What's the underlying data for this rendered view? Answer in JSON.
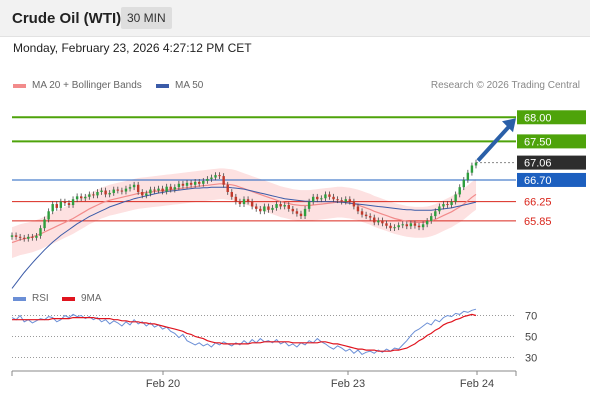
{
  "header": {
    "title": "Crude Oil (WTI)",
    "timeframe": "30 MIN"
  },
  "datetime": "Monday, February 23, 2026 4:27:12 PM CET",
  "legend": {
    "ma20": "MA 20 + Bollinger Bands",
    "ma50": "MA 50",
    "copyright": "Research © 2026 Trading Central"
  },
  "colors": {
    "resistance": "#4ea30a",
    "support": "#1c5fbf",
    "pivot_red": "#d9261c",
    "ma20": "#f28b8b",
    "ma50": "#3b5ba8",
    "bollinger_fill": "#fde1e1",
    "arrow": "#2a5fa8",
    "rsi": "#6b8fd6",
    "rsi_ma": "#e0141e"
  },
  "chart_data": [
    {
      "type": "candlestick",
      "title": "Crude Oil (WTI)",
      "timeframe": "30 MIN",
      "x_ticks": [
        "Feb 20",
        "Feb 23",
        "Feb 24"
      ],
      "ylim": [
        64.5,
        68.4
      ],
      "levels": [
        {
          "value": 68.0,
          "label": "68.00",
          "kind": "resistance"
        },
        {
          "value": 67.5,
          "label": "67.50",
          "kind": "resistance"
        },
        {
          "value": 67.06,
          "label": "67.06",
          "kind": "last_price"
        },
        {
          "value": 66.7,
          "label": "66.70",
          "kind": "pivot"
        },
        {
          "value": 66.25,
          "label": "66.25",
          "kind": "support"
        },
        {
          "value": 65.85,
          "label": "65.85",
          "kind": "support"
        }
      ],
      "close": [
        65.55,
        65.52,
        65.5,
        65.48,
        65.52,
        65.5,
        65.54,
        65.7,
        65.88,
        66.05,
        66.2,
        66.12,
        66.25,
        66.22,
        66.18,
        66.3,
        66.36,
        66.32,
        66.35,
        66.4,
        66.38,
        66.45,
        66.48,
        66.4,
        66.43,
        66.5,
        66.48,
        66.46,
        66.52,
        66.55,
        66.6,
        66.45,
        66.38,
        66.42,
        66.5,
        66.48,
        66.52,
        66.46,
        66.56,
        66.5,
        66.55,
        66.62,
        66.58,
        66.64,
        66.6,
        66.66,
        66.62,
        66.68,
        66.72,
        66.75,
        66.8,
        66.78,
        66.6,
        66.45,
        66.35,
        66.25,
        66.2,
        66.3,
        66.25,
        66.15,
        66.1,
        66.05,
        66.15,
        66.08,
        66.12,
        66.2,
        66.15,
        66.18,
        66.1,
        66.05,
        66.0,
        65.95,
        66.1,
        66.25,
        66.35,
        66.3,
        66.32,
        66.4,
        66.35,
        66.3,
        66.28,
        66.25,
        66.3,
        66.25,
        66.15,
        66.05,
        65.98,
        65.95,
        65.92,
        65.82,
        65.86,
        65.8,
        65.75,
        65.7,
        65.72,
        65.76,
        65.78,
        65.74,
        65.8,
        65.75,
        65.72,
        65.78,
        65.85,
        65.95,
        66.05,
        66.15,
        66.2,
        66.18,
        66.25,
        66.4,
        66.55,
        66.7,
        66.85,
        67.0,
        67.06
      ],
      "ma20": [
        65.4,
        65.43,
        65.46,
        65.48,
        65.5,
        65.52,
        65.55,
        65.58,
        65.62,
        65.66,
        65.7,
        65.74,
        65.78,
        65.82,
        65.86,
        65.9,
        65.95,
        66.0,
        66.05,
        66.1,
        66.14,
        66.18,
        66.22,
        66.25,
        66.28,
        66.3,
        66.32,
        66.34,
        66.36,
        66.38,
        66.4,
        66.42,
        66.43,
        66.44,
        66.45,
        66.46,
        66.47,
        66.48,
        66.49,
        66.5,
        66.51,
        66.52,
        66.53,
        66.54,
        66.55,
        66.56,
        66.57,
        66.58,
        66.59,
        66.6,
        66.61,
        66.62,
        66.62,
        66.61,
        66.6,
        66.58,
        66.55,
        66.52,
        66.49,
        66.46,
        66.43,
        66.4,
        66.37,
        66.34,
        66.31,
        66.28,
        66.25,
        66.23,
        66.21,
        66.19,
        66.18,
        66.17,
        66.17,
        66.17,
        66.18,
        66.19,
        66.2,
        66.21,
        66.22,
        66.23,
        66.24,
        66.24,
        66.23,
        66.22,
        66.2,
        66.18,
        66.15,
        66.12,
        66.09,
        66.05,
        66.02,
        65.99,
        65.96,
        65.93,
        65.9,
        65.88,
        65.86,
        65.84,
        65.83,
        65.82,
        65.82,
        65.82,
        65.83,
        65.85,
        65.88,
        65.92,
        65.96,
        66.0,
        66.04,
        66.09,
        66.14,
        66.2,
        66.27,
        66.34,
        66.4
      ],
      "ma50": [
        64.45,
        64.56,
        64.67,
        64.78,
        64.88,
        64.98,
        65.07,
        65.16,
        65.25,
        65.33,
        65.41,
        65.48,
        65.55,
        65.61,
        65.67,
        65.73,
        65.79,
        65.84,
        65.89,
        65.94,
        65.98,
        66.02,
        66.06,
        66.1,
        66.14,
        66.17,
        66.2,
        66.23,
        66.26,
        66.28,
        66.31,
        66.33,
        66.35,
        66.37,
        66.39,
        66.41,
        66.43,
        66.44,
        66.46,
        66.47,
        66.48,
        66.49,
        66.5,
        66.51,
        66.52,
        66.53,
        66.53,
        66.54,
        66.54,
        66.55,
        66.55,
        66.55,
        66.55,
        66.55,
        66.54,
        66.53,
        66.52,
        66.51,
        66.49,
        66.47,
        66.45,
        66.43,
        66.41,
        66.39,
        66.37,
        66.35,
        66.33,
        66.31,
        66.3,
        66.29,
        66.28,
        66.27,
        66.26,
        66.26,
        66.25,
        66.25,
        66.25,
        66.25,
        66.25,
        66.25,
        66.24,
        66.24,
        66.23,
        66.22,
        66.21,
        66.2,
        66.19,
        66.18,
        66.17,
        66.16,
        66.15,
        66.14,
        66.13,
        66.12,
        66.11,
        66.1,
        66.09,
        66.08,
        66.08,
        66.07,
        66.07,
        66.07,
        66.07,
        66.07,
        66.08,
        66.09,
        66.1,
        66.11,
        66.12,
        66.14,
        66.16,
        66.18,
        66.2,
        66.22,
        66.24
      ],
      "bb_width": 0.32
    },
    {
      "type": "line",
      "title": "RSI",
      "legend": [
        "RSI",
        "9MA"
      ],
      "y_ticks": [
        70,
        50,
        30
      ],
      "ylim": [
        20,
        80
      ],
      "series": [
        {
          "name": "RSI",
          "values": [
            68,
            66,
            70,
            64,
            66,
            63,
            65,
            67,
            66,
            69,
            68,
            64,
            66,
            70,
            68,
            71,
            69,
            70,
            67,
            69,
            66,
            68,
            64,
            66,
            62,
            65,
            63,
            60,
            64,
            61,
            66,
            62,
            64,
            60,
            63,
            59,
            61,
            57,
            59,
            55,
            53,
            49,
            52,
            46,
            44,
            42,
            44,
            41,
            43,
            40,
            44,
            42,
            45,
            43,
            41,
            44,
            42,
            46,
            43,
            47,
            44,
            48,
            45,
            46,
            44,
            47,
            43,
            45,
            41,
            43,
            40,
            44,
            42,
            46,
            44,
            48,
            45,
            43,
            40,
            38,
            41,
            39,
            36,
            38,
            34,
            37,
            33,
            35,
            36,
            34,
            37,
            35,
            38,
            36,
            39,
            38,
            42,
            46,
            51,
            55,
            57,
            60,
            63,
            61,
            66,
            64,
            68,
            70,
            69,
            72,
            71,
            74,
            73,
            75,
            76
          ]
        },
        {
          "name": "9MA",
          "values": [
            66,
            66,
            66,
            66,
            66,
            66,
            66,
            66,
            66,
            66,
            67,
            67,
            67,
            67,
            67,
            68,
            68,
            68,
            68,
            68,
            68,
            67,
            67,
            67,
            67,
            66,
            66,
            65,
            65,
            64,
            64,
            64,
            63,
            63,
            62,
            62,
            61,
            60,
            59,
            58,
            57,
            56,
            55,
            53,
            52,
            50,
            49,
            48,
            46,
            45,
            44,
            44,
            43,
            43,
            43,
            43,
            43,
            43,
            43,
            44,
            44,
            44,
            45,
            45,
            45,
            45,
            45,
            45,
            45,
            44,
            44,
            44,
            44,
            44,
            44,
            44,
            45,
            45,
            44,
            43,
            43,
            42,
            41,
            40,
            39,
            38,
            38,
            37,
            37,
            37,
            36,
            36,
            36,
            36,
            37,
            37,
            38,
            39,
            41,
            43,
            46,
            48,
            51,
            53,
            56,
            58,
            61,
            63,
            64,
            66,
            67,
            69,
            70,
            71,
            70
          ]
        }
      ]
    }
  ]
}
